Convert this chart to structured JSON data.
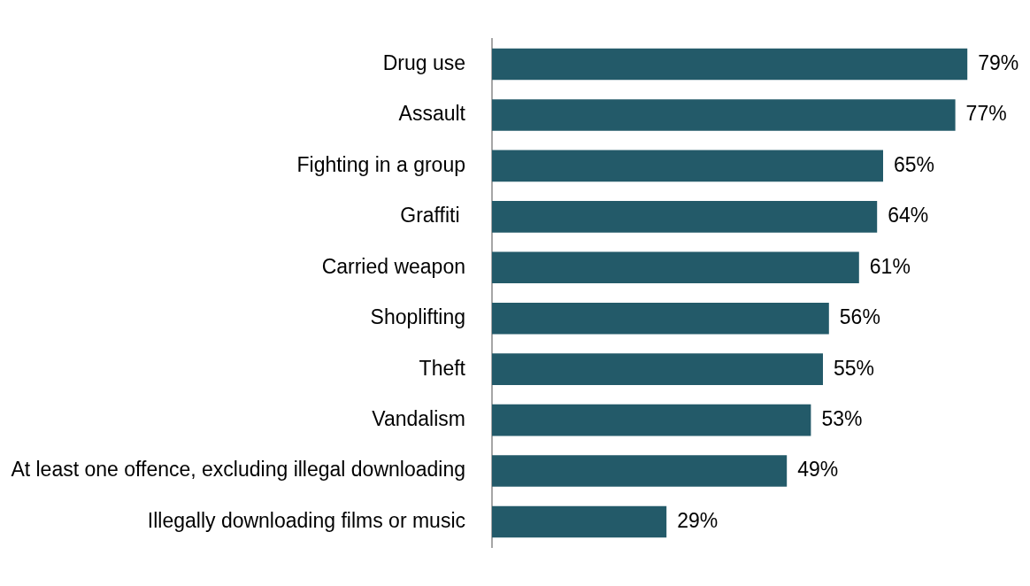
{
  "chart_data": {
    "type": "bar",
    "orientation": "horizontal",
    "categories": [
      "Drug use",
      "Assault",
      "Fighting in a group",
      "Graffiti ",
      "Carried weapon",
      "Shoplifting",
      "Theft",
      "Vandalism",
      "At least one offence, excluding illegal downloading",
      "Illegally downloading films or music"
    ],
    "values": [
      79,
      77,
      65,
      64,
      61,
      56,
      55,
      53,
      49,
      29
    ],
    "value_labels": [
      "79%",
      "77%",
      "65%",
      "64%",
      "61%",
      "56%",
      "55%",
      "53%",
      "49%",
      "29%"
    ],
    "color": "#235a69",
    "tick_labels": "y"
  }
}
